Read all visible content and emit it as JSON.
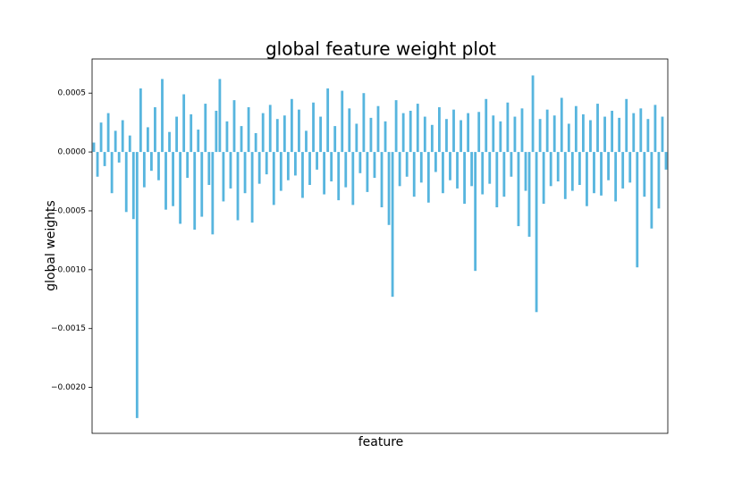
{
  "chart_data": {
    "type": "bar",
    "title": "global feature weight plot",
    "xlabel": "feature",
    "ylabel": "global weights",
    "color": "#3aa8d8",
    "ylim": [
      -0.00239,
      0.00079
    ],
    "yticks": [
      {
        "value": -0.002,
        "label": "−0.0020"
      },
      {
        "value": -0.0015,
        "label": "−0.0015"
      },
      {
        "value": -0.001,
        "label": "−0.0010"
      },
      {
        "value": -0.0005,
        "label": "−0.0005"
      },
      {
        "value": 0,
        "label": "0.0000"
      },
      {
        "value": 0.0005,
        "label": "0.0005"
      }
    ],
    "values": [
      8e-05,
      -0.00021,
      0.00025,
      -0.00012,
      0.00033,
      -0.00035,
      0.00018,
      -9e-05,
      0.00027,
      -0.00051,
      0.00014,
      -0.00057,
      -0.00226,
      0.00054,
      -0.0003,
      0.00021,
      -0.00016,
      0.00038,
      -0.00024,
      0.00062,
      -0.00049,
      0.00017,
      -0.00046,
      0.0003,
      -0.00061,
      0.00049,
      -0.00022,
      0.00032,
      -0.00066,
      0.00019,
      -0.00055,
      0.00041,
      -0.00028,
      -0.0007,
      0.00035,
      0.00062,
      -0.00042,
      0.00026,
      -0.00031,
      0.00044,
      -0.00058,
      0.00022,
      -0.00035,
      0.00038,
      -0.0006,
      0.00016,
      -0.00027,
      0.00033,
      -0.00019,
      0.0004,
      -0.00045,
      0.00028,
      -0.00033,
      0.00031,
      -0.00024,
      0.00045,
      -0.0002,
      0.00036,
      -0.00039,
      0.00018,
      -0.00028,
      0.00042,
      -0.00015,
      0.0003,
      -0.00036,
      0.00054,
      -0.00025,
      0.00022,
      -0.00041,
      0.00052,
      -0.0003,
      0.00037,
      -0.00045,
      0.00024,
      -0.00018,
      0.0005,
      -0.00034,
      0.00029,
      -0.00022,
      0.00039,
      -0.00047,
      0.00026,
      -0.00062,
      -0.00123,
      0.00044,
      -0.00029,
      0.00033,
      -0.00021,
      0.00035,
      -0.00038,
      0.00041,
      -0.00026,
      0.0003,
      -0.00043,
      0.00023,
      -0.00017,
      0.00038,
      -0.00035,
      0.00028,
      -0.00024,
      0.00036,
      -0.00031,
      0.00027,
      -0.00044,
      0.00033,
      -0.00029,
      -0.00101,
      0.00034,
      -0.00036,
      0.00045,
      -0.00027,
      0.00031,
      -0.00047,
      0.00026,
      -0.00038,
      0.00042,
      -0.00021,
      0.0003,
      -0.00063,
      0.00037,
      -0.00033,
      -0.00072,
      0.00065,
      -0.00136,
      0.00028,
      -0.00044,
      0.00036,
      -0.00029,
      0.00031,
      -0.00025,
      0.00046,
      -0.0004,
      0.00024,
      -0.00033,
      0.00039,
      -0.00028,
      0.00032,
      -0.00046,
      0.00027,
      -0.00035,
      0.00041,
      -0.00037,
      0.0003,
      -0.00024,
      0.00035,
      -0.00042,
      0.00029,
      -0.00031,
      0.00045,
      -0.00026,
      0.00033,
      -0.00098,
      0.00037,
      -0.00038,
      0.00028,
      -0.00065,
      0.0004,
      -0.00048,
      0.0003,
      -0.00015
    ]
  }
}
